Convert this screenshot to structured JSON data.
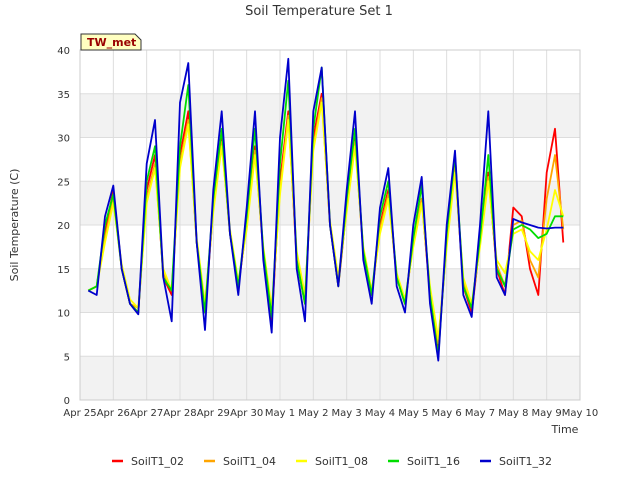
{
  "chart_data": {
    "type": "line",
    "title": "Soil Temperature Set 1",
    "site_label": "TW_met",
    "xlabel": "Time",
    "ylabel": "Soil Temperature (C)",
    "ylim": [
      0,
      40
    ],
    "yticks": [
      0,
      5,
      10,
      15,
      20,
      25,
      30,
      35,
      40
    ],
    "xlim": [
      "2024-04-25",
      "2024-05-10"
    ],
    "xtick_labels": [
      "Apr 25",
      "Apr 26",
      "Apr 27",
      "Apr 28",
      "Apr 29",
      "Apr 30",
      "May 1",
      "May 2",
      "May 3",
      "May 4",
      "May 5",
      "May 6",
      "May 7",
      "May 8",
      "May 9",
      "May 10"
    ],
    "grid": true,
    "legend_position": "bottom",
    "series": [
      {
        "name": "SoilT1_02",
        "color": "#ff0000",
        "x": [
          "2024-04-25T06:00",
          "2024-04-25T12:00",
          "2024-04-25T18:00",
          "2024-04-26T00:00",
          "2024-04-26T06:00",
          "2024-04-26T12:00",
          "2024-04-26T18:00",
          "2024-04-27T00:00",
          "2024-04-27T06:00",
          "2024-04-27T12:00",
          "2024-04-27T18:00",
          "2024-04-28T00:00",
          "2024-04-28T06:00",
          "2024-04-28T12:00",
          "2024-04-28T18:00",
          "2024-04-29T00:00",
          "2024-04-29T06:00",
          "2024-04-29T12:00",
          "2024-04-29T18:00",
          "2024-04-30T00:00",
          "2024-04-30T06:00",
          "2024-04-30T12:00",
          "2024-04-30T18:00",
          "2024-05-01T00:00",
          "2024-05-01T06:00",
          "2024-05-01T12:00",
          "2024-05-01T18:00",
          "2024-05-02T00:00",
          "2024-05-02T06:00",
          "2024-05-02T12:00",
          "2024-05-02T18:00",
          "2024-05-03T00:00",
          "2024-05-03T06:00",
          "2024-05-03T12:00",
          "2024-05-03T18:00",
          "2024-05-04T00:00",
          "2024-05-04T06:00",
          "2024-05-04T12:00",
          "2024-05-04T18:00",
          "2024-05-05T00:00",
          "2024-05-05T06:00",
          "2024-05-05T12:00",
          "2024-05-05T18:00",
          "2024-05-06T00:00",
          "2024-05-06T06:00",
          "2024-05-06T12:00",
          "2024-05-06T18:00",
          "2024-05-07T00:00",
          "2024-05-07T06:00",
          "2024-05-07T12:00",
          "2024-05-07T18:00",
          "2024-05-08T00:00",
          "2024-05-08T06:00",
          "2024-05-08T12:00",
          "2024-05-08T18:00",
          "2024-05-09T00:00",
          "2024-05-09T06:00",
          "2024-05-09T12:00"
        ],
        "y": [
          12.5,
          13,
          19,
          24,
          15,
          11,
          10,
          24,
          28,
          14,
          12,
          28,
          33,
          18,
          10,
          22,
          30,
          19,
          13,
          20,
          29,
          17,
          9,
          25,
          33,
          16,
          11,
          30,
          35,
          20,
          13,
          22,
          30,
          17,
          12,
          20,
          24,
          14,
          11,
          18,
          23,
          12,
          6,
          18,
          27,
          13,
          10,
          18,
          26,
          15,
          12,
          22,
          21,
          15,
          12,
          26,
          31,
          18
        ]
      },
      {
        "name": "SoilT1_04",
        "color": "#ffa500",
        "x": [
          "2024-04-25T06:00",
          "2024-04-25T12:00",
          "2024-04-25T18:00",
          "2024-04-26T00:00",
          "2024-04-26T06:00",
          "2024-04-26T12:00",
          "2024-04-26T18:00",
          "2024-04-27T00:00",
          "2024-04-27T06:00",
          "2024-04-27T12:00",
          "2024-04-27T18:00",
          "2024-04-28T00:00",
          "2024-04-28T06:00",
          "2024-04-28T12:00",
          "2024-04-28T18:00",
          "2024-04-29T00:00",
          "2024-04-29T06:00",
          "2024-04-29T12:00",
          "2024-04-29T18:00",
          "2024-04-30T00:00",
          "2024-04-30T06:00",
          "2024-04-30T12:00",
          "2024-04-30T18:00",
          "2024-05-01T00:00",
          "2024-05-01T06:00",
          "2024-05-01T12:00",
          "2024-05-01T18:00",
          "2024-05-02T00:00",
          "2024-05-02T06:00",
          "2024-05-02T12:00",
          "2024-05-02T18:00",
          "2024-05-03T00:00",
          "2024-05-03T06:00",
          "2024-05-03T12:00",
          "2024-05-03T18:00",
          "2024-05-04T00:00",
          "2024-05-04T06:00",
          "2024-05-04T12:00",
          "2024-05-04T18:00",
          "2024-05-05T00:00",
          "2024-05-05T06:00",
          "2024-05-05T12:00",
          "2024-05-05T18:00",
          "2024-05-06T00:00",
          "2024-05-06T06:00",
          "2024-05-06T12:00",
          "2024-05-06T18:00",
          "2024-05-07T00:00",
          "2024-05-07T06:00",
          "2024-05-07T12:00",
          "2024-05-07T18:00",
          "2024-05-08T00:00",
          "2024-05-08T06:00",
          "2024-05-08T12:00",
          "2024-05-08T18:00",
          "2024-05-09T00:00",
          "2024-05-09T06:00",
          "2024-05-09T12:00"
        ],
        "y": [
          12.5,
          13,
          18.5,
          23,
          15,
          11,
          10.5,
          23,
          27,
          14.5,
          12.5,
          27,
          32,
          18,
          10.5,
          22,
          29.5,
          19,
          13,
          20,
          28.5,
          17,
          10,
          24,
          32.5,
          16.5,
          11.5,
          29,
          34.5,
          20,
          13.5,
          22,
          29.5,
          17,
          12,
          19.5,
          23.5,
          14,
          11,
          18,
          23,
          12.5,
          6.5,
          18,
          26.5,
          13.5,
          10.5,
          18,
          25.5,
          15.5,
          13,
          20,
          20.5,
          16,
          14,
          23,
          28,
          19.5
        ]
      },
      {
        "name": "SoilT1_08",
        "color": "#ffff00",
        "x": [
          "2024-04-25T06:00",
          "2024-04-25T12:00",
          "2024-04-25T18:00",
          "2024-04-26T00:00",
          "2024-04-26T06:00",
          "2024-04-26T12:00",
          "2024-04-26T18:00",
          "2024-04-27T00:00",
          "2024-04-27T06:00",
          "2024-04-27T12:00",
          "2024-04-27T18:00",
          "2024-04-28T00:00",
          "2024-04-28T06:00",
          "2024-04-28T12:00",
          "2024-04-28T18:00",
          "2024-04-29T00:00",
          "2024-04-29T06:00",
          "2024-04-29T12:00",
          "2024-04-29T18:00",
          "2024-04-30T00:00",
          "2024-04-30T06:00",
          "2024-04-30T12:00",
          "2024-04-30T18:00",
          "2024-05-01T00:00",
          "2024-05-01T06:00",
          "2024-05-01T12:00",
          "2024-05-01T18:00",
          "2024-05-02T00:00",
          "2024-05-02T06:00",
          "2024-05-02T12:00",
          "2024-05-02T18:00",
          "2024-05-03T00:00",
          "2024-05-03T06:00",
          "2024-05-03T12:00",
          "2024-05-03T18:00",
          "2024-05-04T00:00",
          "2024-05-04T06:00",
          "2024-05-04T12:00",
          "2024-05-04T18:00",
          "2024-05-05T00:00",
          "2024-05-05T06:00",
          "2024-05-05T12:00",
          "2024-05-05T18:00",
          "2024-05-06T00:00",
          "2024-05-06T06:00",
          "2024-05-06T12:00",
          "2024-05-06T18:00",
          "2024-05-07T00:00",
          "2024-05-07T06:00",
          "2024-05-07T12:00",
          "2024-05-07T18:00",
          "2024-05-08T00:00",
          "2024-05-08T06:00",
          "2024-05-08T12:00",
          "2024-05-08T18:00",
          "2024-05-09T00:00",
          "2024-05-09T06:00",
          "2024-05-09T12:00"
        ],
        "y": [
          12.5,
          13,
          18,
          22.5,
          15.5,
          11.5,
          10.5,
          22.5,
          26.5,
          15,
          12.5,
          26.5,
          31.5,
          18.5,
          11,
          21.5,
          29,
          19.5,
          13.5,
          19.5,
          28,
          17.5,
          10.5,
          23.5,
          32,
          17,
          12,
          28.5,
          34,
          20.5,
          14,
          21.5,
          29,
          17.5,
          12.5,
          19,
          23,
          14.5,
          11.5,
          17.5,
          22.5,
          13,
          7,
          17.5,
          26,
          14,
          11,
          17.5,
          25,
          16,
          14.5,
          19,
          19.5,
          17,
          16,
          19.5,
          24,
          21
        ]
      },
      {
        "name": "SoilT1_16",
        "color": "#00dd00",
        "x": [
          "2024-04-25T06:00",
          "2024-04-25T12:00",
          "2024-04-25T18:00",
          "2024-04-26T00:00",
          "2024-04-26T06:00",
          "2024-04-26T12:00",
          "2024-04-26T18:00",
          "2024-04-27T00:00",
          "2024-04-27T06:00",
          "2024-04-27T12:00",
          "2024-04-27T18:00",
          "2024-04-28T00:00",
          "2024-04-28T06:00",
          "2024-04-28T12:00",
          "2024-04-28T18:00",
          "2024-04-29T00:00",
          "2024-04-29T06:00",
          "2024-04-29T12:00",
          "2024-04-29T18:00",
          "2024-04-30T00:00",
          "2024-04-30T06:00",
          "2024-04-30T12:00",
          "2024-04-30T18:00",
          "2024-05-01T00:00",
          "2024-05-01T06:00",
          "2024-05-01T12:00",
          "2024-05-01T18:00",
          "2024-05-02T00:00",
          "2024-05-02T06:00",
          "2024-05-02T12:00",
          "2024-05-02T18:00",
          "2024-05-03T00:00",
          "2024-05-03T06:00",
          "2024-05-03T12:00",
          "2024-05-03T18:00",
          "2024-05-04T00:00",
          "2024-05-04T06:00",
          "2024-05-04T12:00",
          "2024-05-04T18:00",
          "2024-05-05T00:00",
          "2024-05-05T06:00",
          "2024-05-05T12:00",
          "2024-05-05T18:00",
          "2024-05-06T00:00",
          "2024-05-06T06:00",
          "2024-05-06T12:00",
          "2024-05-06T18:00",
          "2024-05-07T00:00",
          "2024-05-07T06:00",
          "2024-05-07T12:00",
          "2024-05-07T18:00",
          "2024-05-08T00:00",
          "2024-05-08T06:00",
          "2024-05-08T12:00",
          "2024-05-08T18:00",
          "2024-05-09T00:00",
          "2024-05-09T06:00",
          "2024-05-09T12:00"
        ],
        "y": [
          12.5,
          13,
          20,
          23.5,
          15,
          11,
          10,
          25,
          29,
          14,
          12.5,
          29,
          36,
          18,
          10,
          23,
          31,
          19,
          13,
          21,
          31,
          17,
          9.5,
          27,
          36.5,
          16,
          11,
          31,
          38,
          20,
          13,
          23,
          31,
          17,
          12,
          21,
          25,
          14,
          11,
          18.5,
          24.5,
          12,
          5,
          19,
          28,
          13,
          10.5,
          18.5,
          28,
          15,
          13,
          19.5,
          20,
          19.5,
          18.5,
          19,
          21,
          21
        ]
      },
      {
        "name": "SoilT1_32",
        "color": "#0000cc",
        "x": [
          "2024-04-25T06:00",
          "2024-04-25T12:00",
          "2024-04-25T18:00",
          "2024-04-26T00:00",
          "2024-04-26T06:00",
          "2024-04-26T12:00",
          "2024-04-26T18:00",
          "2024-04-27T00:00",
          "2024-04-27T06:00",
          "2024-04-27T12:00",
          "2024-04-27T18:00",
          "2024-04-28T00:00",
          "2024-04-28T06:00",
          "2024-04-28T12:00",
          "2024-04-28T18:00",
          "2024-04-29T00:00",
          "2024-04-29T06:00",
          "2024-04-29T12:00",
          "2024-04-29T18:00",
          "2024-04-30T00:00",
          "2024-04-30T06:00",
          "2024-04-30T12:00",
          "2024-04-30T18:00",
          "2024-05-01T00:00",
          "2024-05-01T06:00",
          "2024-05-01T12:00",
          "2024-05-01T18:00",
          "2024-05-02T00:00",
          "2024-05-02T06:00",
          "2024-05-02T12:00",
          "2024-05-02T18:00",
          "2024-05-03T00:00",
          "2024-05-03T06:00",
          "2024-05-03T12:00",
          "2024-05-03T18:00",
          "2024-05-04T00:00",
          "2024-05-04T06:00",
          "2024-05-04T12:00",
          "2024-05-04T18:00",
          "2024-05-05T00:00",
          "2024-05-05T06:00",
          "2024-05-05T12:00",
          "2024-05-05T18:00",
          "2024-05-06T00:00",
          "2024-05-06T06:00",
          "2024-05-06T12:00",
          "2024-05-06T18:00",
          "2024-05-07T00:00",
          "2024-05-07T06:00",
          "2024-05-07T12:00",
          "2024-05-07T18:00",
          "2024-05-08T00:00",
          "2024-05-08T06:00",
          "2024-05-08T12:00",
          "2024-05-08T18:00",
          "2024-05-09T00:00",
          "2024-05-09T06:00",
          "2024-05-09T12:00"
        ],
        "y": [
          12.5,
          12,
          21,
          24.5,
          15,
          11,
          9.8,
          27,
          32,
          14,
          9,
          34,
          38.5,
          18,
          8,
          24,
          33,
          19,
          12,
          22,
          33,
          16,
          7.7,
          30,
          39,
          15,
          9,
          33,
          38,
          20,
          13,
          24,
          33,
          16,
          11,
          22,
          26.5,
          13,
          10,
          20,
          25.5,
          11,
          4.5,
          20,
          28.5,
          12,
          9.5,
          20,
          33,
          14,
          12,
          20.7,
          20.3,
          20,
          19.7,
          19.6,
          19.7,
          19.7
        ]
      }
    ]
  }
}
